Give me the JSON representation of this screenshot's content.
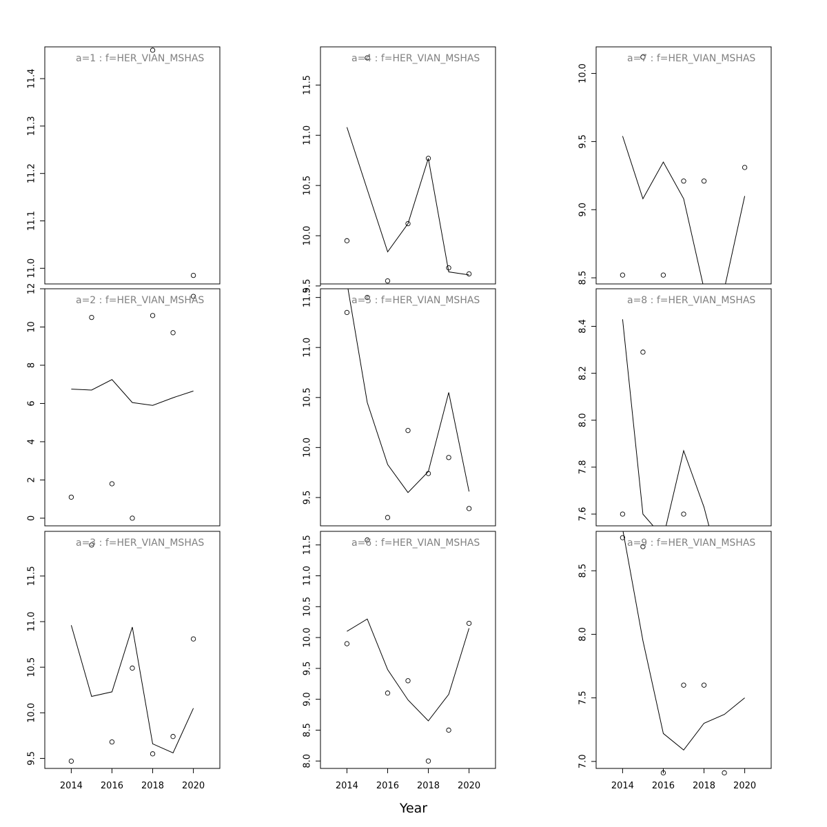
{
  "chart_data": {
    "type": "scatter",
    "xlabel": "Year",
    "x": [
      2014,
      2015,
      2016,
      2017,
      2018,
      2019,
      2020
    ],
    "x_ticks": [
      2014,
      2016,
      2018,
      2020
    ],
    "xlim": [
      2012.7,
      2021.3
    ],
    "panels": [
      {
        "title": "a=1 : f=HER_VIAN_MSHAS",
        "ylim": [
          10.967,
          11.467
        ],
        "yticks": [
          11.0,
          11.1,
          11.2,
          11.3,
          11.4
        ],
        "points": [
          [
            2018,
            11.46
          ],
          [
            2020,
            10.985
          ]
        ],
        "line": []
      },
      {
        "title": "a=2 : f=HER_VIAN_MSHAS",
        "ylim": [
          -0.4,
          12.0
        ],
        "yticks": [
          0,
          2,
          4,
          6,
          8,
          10,
          12
        ],
        "points": [
          [
            2014,
            1.1
          ],
          [
            2015,
            10.5
          ],
          [
            2016,
            1.8
          ],
          [
            2017,
            0.0
          ],
          [
            2018,
            10.6
          ],
          [
            2019,
            9.7
          ],
          [
            2020,
            11.6
          ]
        ],
        "line": [
          [
            2014,
            6.75
          ],
          [
            2015,
            6.7
          ],
          [
            2016,
            7.25
          ],
          [
            2017,
            6.05
          ],
          [
            2018,
            5.9
          ],
          [
            2019,
            6.3
          ],
          [
            2020,
            6.65
          ]
        ]
      },
      {
        "title": "a=3 : f=HER_VIAN_MSHAS",
        "ylim": [
          9.39,
          11.99
        ],
        "yticks": [
          9.5,
          10.0,
          10.5,
          11.0,
          11.5
        ],
        "points": [
          [
            2014,
            9.47
          ],
          [
            2015,
            11.84
          ],
          [
            2016,
            9.68
          ],
          [
            2017,
            10.49
          ],
          [
            2018,
            9.55
          ],
          [
            2019,
            9.74
          ],
          [
            2020,
            10.81
          ]
        ],
        "line": [
          [
            2014,
            10.96
          ],
          [
            2015,
            10.18
          ],
          [
            2016,
            10.23
          ],
          [
            2017,
            10.94
          ],
          [
            2018,
            9.66
          ],
          [
            2019,
            9.56
          ],
          [
            2020,
            10.05
          ]
        ]
      },
      {
        "title": "a=4 : f=HER_VIAN_MSHAS",
        "ylim": [
          9.52,
          11.88
        ],
        "yticks": [
          9.5,
          10.0,
          10.5,
          11.0,
          11.5
        ],
        "points": [
          [
            2014,
            9.95
          ],
          [
            2015,
            11.77
          ],
          [
            2016,
            9.55
          ],
          [
            2017,
            10.12
          ],
          [
            2018,
            10.77
          ],
          [
            2019,
            9.68
          ],
          [
            2020,
            9.62
          ]
        ],
        "line": [
          [
            2014,
            11.08
          ],
          [
            2015,
            10.46
          ],
          [
            2016,
            9.84
          ],
          [
            2017,
            10.12
          ],
          [
            2018,
            10.77
          ],
          [
            2019,
            9.64
          ],
          [
            2020,
            9.61
          ]
        ]
      },
      {
        "title": "a=5 : f=HER_VIAN_MSHAS",
        "ylim": [
          9.217,
          11.587
        ],
        "yticks": [
          9.5,
          10.0,
          10.5,
          11.0,
          11.5
        ],
        "points": [
          [
            2014,
            11.35
          ],
          [
            2015,
            11.5
          ],
          [
            2016,
            9.3
          ],
          [
            2017,
            10.17
          ],
          [
            2018,
            9.74
          ],
          [
            2019,
            9.9
          ],
          [
            2020,
            9.39
          ]
        ],
        "line": [
          [
            2014,
            11.65
          ],
          [
            2015,
            10.45
          ],
          [
            2016,
            9.83
          ],
          [
            2017,
            9.55
          ],
          [
            2018,
            9.76
          ],
          [
            2019,
            10.55
          ],
          [
            2020,
            9.56
          ]
        ]
      },
      {
        "title": "a=6 : f=HER_VIAN_MSHAS",
        "ylim": [
          7.88,
          11.72
        ],
        "yticks": [
          8.0,
          8.5,
          9.0,
          9.5,
          10.0,
          10.5,
          11.0,
          11.5
        ],
        "points": [
          [
            2014,
            9.9
          ],
          [
            2015,
            11.58
          ],
          [
            2016,
            9.1
          ],
          [
            2017,
            9.3
          ],
          [
            2018,
            8.0
          ],
          [
            2019,
            8.5
          ],
          [
            2020,
            10.23
          ]
        ],
        "line": [
          [
            2014,
            10.1
          ],
          [
            2015,
            10.3
          ],
          [
            2016,
            9.48
          ],
          [
            2017,
            8.99
          ],
          [
            2018,
            8.65
          ],
          [
            2019,
            9.08
          ],
          [
            2020,
            10.15
          ]
        ]
      },
      {
        "title": "a=7 : f=HER_VIAN_MSHAS",
        "ylim": [
          8.455,
          10.195
        ],
        "yticks": [
          8.5,
          9.0,
          9.5,
          10.0
        ],
        "points": [
          [
            2014,
            8.52
          ],
          [
            2015,
            10.12
          ],
          [
            2016,
            8.52
          ],
          [
            2017,
            9.21
          ],
          [
            2018,
            9.21
          ],
          [
            2020,
            9.31
          ]
        ],
        "line": [
          [
            2014,
            9.54
          ],
          [
            2015,
            9.08
          ],
          [
            2016,
            9.35
          ],
          [
            2017,
            9.08
          ],
          [
            2018,
            8.42
          ],
          [
            2019,
            8.42
          ],
          [
            2020,
            9.1
          ]
        ]
      },
      {
        "title": "a=8 : f=HER_VIAN_MSHAS",
        "ylim": [
          7.55,
          8.56
        ],
        "yticks": [
          7.6,
          7.8,
          8.0,
          8.2,
          8.4
        ],
        "points": [
          [
            2014,
            7.6
          ],
          [
            2015,
            8.29
          ],
          [
            2017,
            7.6
          ]
        ],
        "line": [
          [
            2014,
            8.43
          ],
          [
            2015,
            7.6
          ],
          [
            2016,
            7.5
          ],
          [
            2017,
            7.87
          ],
          [
            2018,
            7.63
          ],
          [
            2019,
            7.3
          ]
        ]
      },
      {
        "title": "a=9 : f=HER_VIAN_MSHAS",
        "ylim": [
          6.945,
          8.81
        ],
        "yticks": [
          7.0,
          7.5,
          8.0,
          8.5
        ],
        "points": [
          [
            2014,
            8.76
          ],
          [
            2015,
            8.69
          ],
          [
            2016,
            6.91
          ],
          [
            2017,
            7.6
          ],
          [
            2018,
            7.6
          ],
          [
            2019,
            6.91
          ]
        ],
        "line": [
          [
            2014,
            8.83
          ],
          [
            2015,
            7.95
          ],
          [
            2016,
            7.22
          ],
          [
            2017,
            7.09
          ],
          [
            2018,
            7.3
          ],
          [
            2019,
            7.37
          ],
          [
            2020,
            7.5
          ]
        ]
      }
    ]
  }
}
